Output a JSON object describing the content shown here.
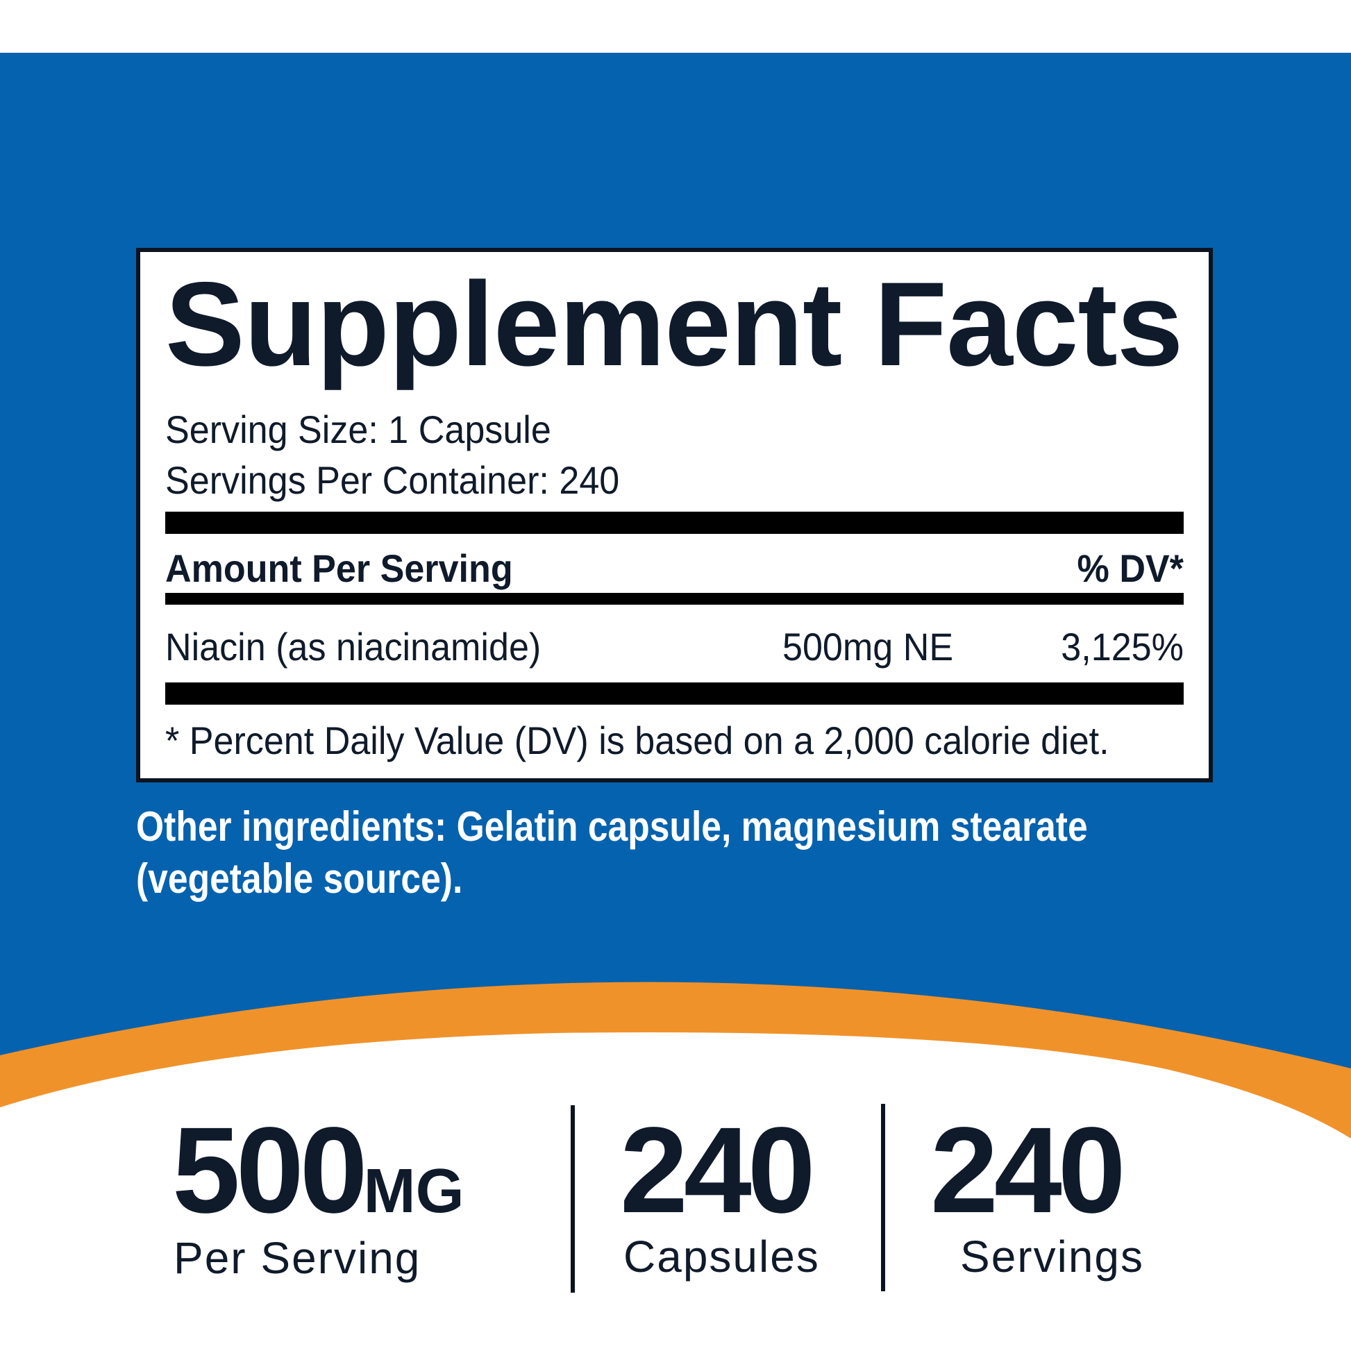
{
  "colors": {
    "brand_blue": "#0562AE",
    "accent_orange": "#F0922A",
    "text_dark": "#0f1a2a"
  },
  "panel": {
    "title": "Supplement Facts",
    "serving_size": "Serving Size: 1 Capsule",
    "servings_per_container": "Servings Per Container: 240",
    "header_left": "Amount Per Serving",
    "header_right": "% DV*",
    "rows": [
      {
        "name": "Niacin (as niacinamide)",
        "amount": "500mg NE",
        "dv": "3,125%"
      }
    ],
    "footnote": "* Percent Daily Value (DV) is based on a 2,000 calorie diet."
  },
  "other_ingredients": {
    "line1": "Other ingredients: Gelatin capsule, magnesium stearate",
    "line2": "(vegetable source)."
  },
  "stats": [
    {
      "value": "500",
      "unit": "MG",
      "label": "Per Serving"
    },
    {
      "value": "240",
      "label": "Capsules"
    },
    {
      "value": "240",
      "label": "Servings"
    }
  ]
}
